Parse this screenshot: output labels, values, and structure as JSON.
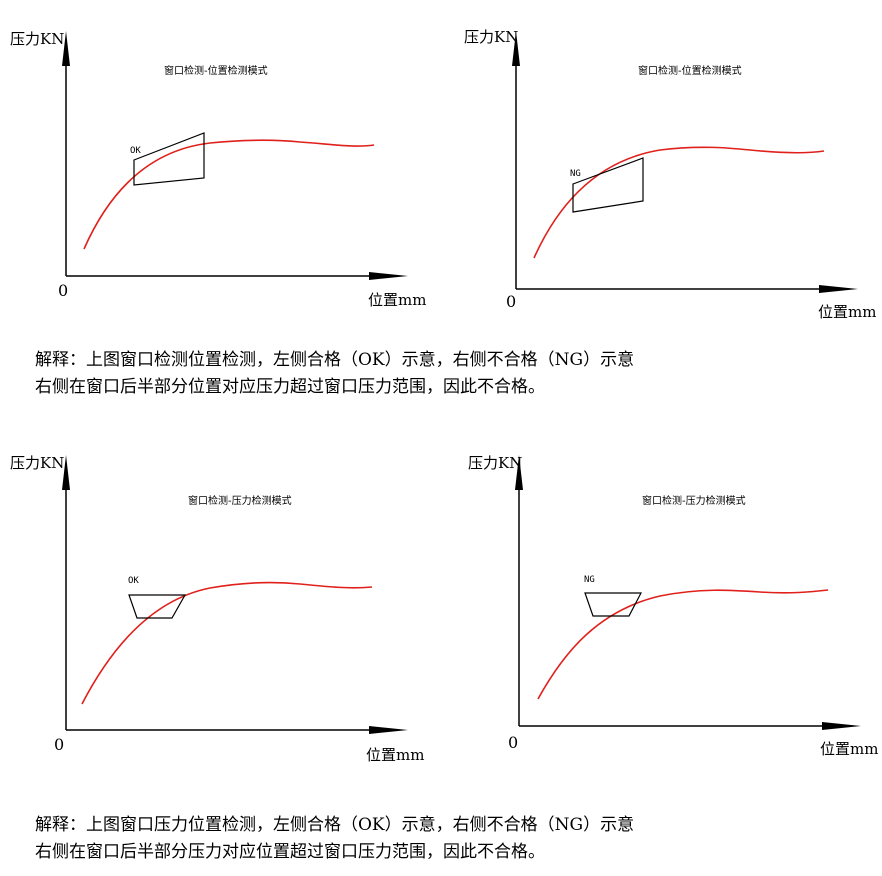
{
  "panels": [
    {
      "y_label": "压力KN",
      "x_label": "位置mm",
      "origin": "0",
      "title": "窗口检测-位置检测模式",
      "window_label": "OK"
    },
    {
      "y_label": "压力KN",
      "x_label": "位置mm",
      "origin": "0",
      "title": "窗口检测-位置检测模式",
      "window_label": "NG"
    },
    {
      "y_label": "压力KN",
      "x_label": "位置mm",
      "origin": "0",
      "title": "窗口检测-压力检测模式",
      "window_label": "OK"
    },
    {
      "y_label": "压力KN",
      "x_label": "位置mm",
      "origin": "0",
      "title": "窗口检测-压力检测模式",
      "window_label": "NG"
    }
  ],
  "captions": [
    {
      "line1": "解释：上图窗口检测位置检测，左侧合格（OK）示意，右侧不合格（NG）示意",
      "line2": "右侧在窗口后半部分位置对应压力超过窗口压力范围，因此不合格。"
    },
    {
      "line1": "解释：上图窗口压力位置检测，左侧合格（OK）示意，右侧不合格（NG）示意",
      "line2": "右侧在窗口后半部分压力对应位置超过窗口压力范围，因此不合格。"
    }
  ],
  "colors": {
    "curve": "#e0201b",
    "axis": "#000000",
    "window": "#000000"
  }
}
